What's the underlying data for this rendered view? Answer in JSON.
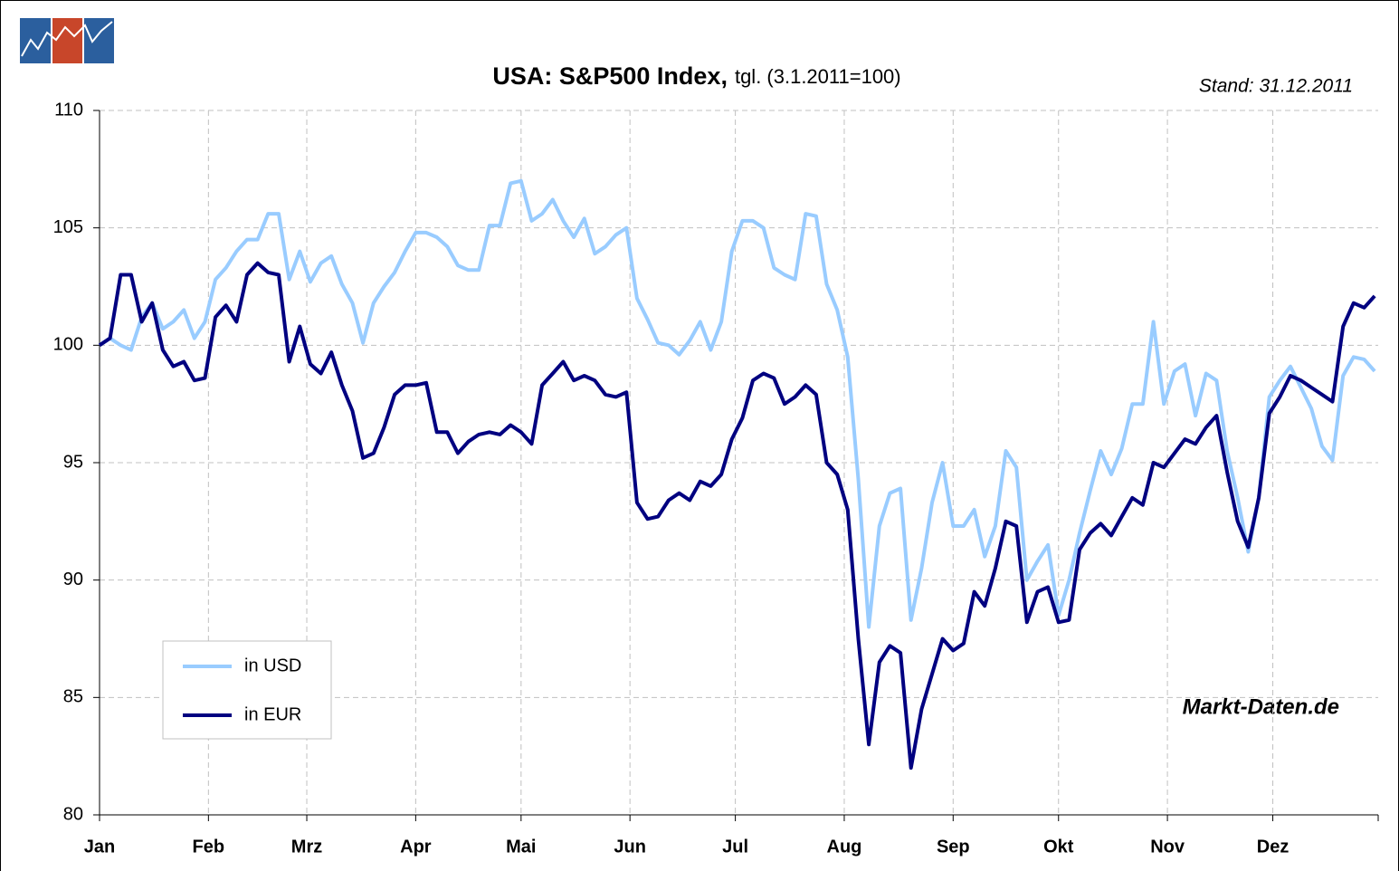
{
  "chart_data": {
    "type": "line",
    "title": "USA:  S&P500 Index,",
    "subtitle": "tgl. (3.1.2011=100)",
    "annotations": [
      "Stand: 31.12.2011",
      "Markt-Daten.de"
    ],
    "x": [
      0,
      3,
      6,
      9,
      12,
      15,
      18,
      21,
      24,
      27,
      30,
      33,
      36,
      39,
      42,
      45,
      48,
      51,
      54,
      57,
      60,
      63,
      66,
      69,
      72,
      75,
      78,
      81,
      84,
      87,
      90,
      93,
      96,
      99,
      102,
      105,
      108,
      111,
      114,
      117,
      120,
      123,
      126,
      129,
      132,
      135,
      138,
      141,
      144,
      147,
      150,
      153,
      156,
      159,
      162,
      165,
      168,
      171,
      174,
      177,
      180,
      183,
      186,
      189,
      192,
      195,
      198,
      201,
      204,
      207,
      210,
      213,
      216,
      219,
      222,
      225,
      228,
      231,
      234,
      237,
      240,
      243,
      246,
      249,
      252,
      255,
      258,
      261,
      264,
      267,
      270,
      273,
      276,
      279,
      282,
      285,
      288,
      291,
      294,
      297,
      300,
      303,
      306,
      309,
      312,
      315,
      318,
      321,
      324,
      327,
      330,
      333,
      336,
      339,
      342,
      345,
      348,
      351,
      354,
      357,
      360,
      363
    ],
    "series": [
      {
        "name": "in USD",
        "color": "#99ccff",
        "values": [
          100,
          100.3,
          100,
          99.8,
          101.2,
          101.8,
          100.7,
          101,
          101.5,
          100.3,
          101,
          102.8,
          103.3,
          104,
          104.5,
          104.5,
          105.6,
          105.6,
          102.8,
          104,
          102.7,
          103.5,
          103.8,
          102.6,
          101.8,
          100.1,
          101.8,
          102.5,
          103.1,
          104,
          104.8,
          104.8,
          104.6,
          104.2,
          103.4,
          103.2,
          103.2,
          105.1,
          105.1,
          106.9,
          107,
          105.3,
          105.6,
          106.2,
          105.3,
          104.6,
          105.4,
          103.9,
          104.2,
          104.7,
          105,
          102,
          101.1,
          100.1,
          100,
          99.6,
          100.2,
          101,
          99.8,
          101,
          104,
          105.3,
          105.3,
          105,
          103.3,
          103,
          102.8,
          105.6,
          105.5,
          102.6,
          101.5,
          99.5,
          94.3,
          88,
          92.3,
          93.7,
          93.9,
          88.3,
          90.5,
          93.3,
          95,
          92.3,
          92.3,
          93,
          91,
          92.3,
          95.5,
          94.8,
          90,
          90.8,
          91.5,
          88.5,
          90,
          92,
          93.8,
          95.5,
          94.5,
          95.6,
          97.5,
          97.5,
          101,
          97.5,
          98.9,
          99.2,
          97,
          98.8,
          98.5,
          95.5,
          93.5,
          91.2,
          93.5,
          97.8,
          98.5,
          99.1,
          98.2,
          97.3,
          95.7,
          95.1,
          98.7,
          99.5,
          99.4,
          98.9
        ]
      },
      {
        "name": "in EUR",
        "color": "#000080",
        "values": [
          100,
          100.3,
          103,
          103,
          101,
          101.8,
          99.8,
          99.1,
          99.3,
          98.5,
          98.6,
          101.2,
          101.7,
          101,
          103,
          103.5,
          103.1,
          103,
          99.3,
          100.8,
          99.2,
          98.8,
          99.7,
          98.3,
          97.2,
          95.2,
          95.4,
          96.5,
          97.9,
          98.3,
          98.3,
          98.4,
          96.3,
          96.3,
          95.4,
          95.9,
          96.2,
          96.3,
          96.2,
          96.6,
          96.3,
          95.8,
          98.3,
          98.8,
          99.3,
          98.5,
          98.7,
          98.5,
          97.9,
          97.8,
          98,
          93.3,
          92.6,
          92.7,
          93.4,
          93.7,
          93.4,
          94.2,
          94,
          94.5,
          96,
          96.9,
          98.5,
          98.8,
          98.6,
          97.5,
          97.8,
          98.3,
          97.9,
          95,
          94.5,
          93,
          87.5,
          83,
          86.5,
          87.2,
          86.9,
          82,
          84.5,
          86,
          87.5,
          87,
          87.3,
          89.5,
          88.9,
          90.5,
          92.5,
          92.3,
          88.2,
          89.5,
          89.7,
          88.2,
          88.3,
          91.3,
          92,
          92.4,
          91.9,
          92.7,
          93.5,
          93.2,
          95,
          94.8,
          95.4,
          96,
          95.8,
          96.5,
          97,
          94.6,
          92.5,
          91.4,
          93.5,
          97.1,
          97.8,
          98.7,
          98.5,
          98.2,
          97.9,
          97.6,
          100.8,
          101.8,
          101.6,
          102.1
        ]
      }
    ],
    "xlim": [
      0,
      364
    ],
    "xticks": [
      {
        "value": 0,
        "label": "Jan"
      },
      {
        "value": 31,
        "label": "Feb"
      },
      {
        "value": 59,
        "label": "Mrz"
      },
      {
        "value": 90,
        "label": "Apr"
      },
      {
        "value": 120,
        "label": "Mai"
      },
      {
        "value": 151,
        "label": "Jun"
      },
      {
        "value": 181,
        "label": "Jul"
      },
      {
        "value": 212,
        "label": "Aug"
      },
      {
        "value": 243,
        "label": "Sep"
      },
      {
        "value": 273,
        "label": "Okt"
      },
      {
        "value": 304,
        "label": "Nov"
      },
      {
        "value": 334,
        "label": "Dez"
      }
    ],
    "ylim": [
      80,
      110
    ],
    "yticks": [
      80,
      85,
      90,
      95,
      100,
      105,
      110
    ],
    "grid": true,
    "legend": "lower left"
  }
}
